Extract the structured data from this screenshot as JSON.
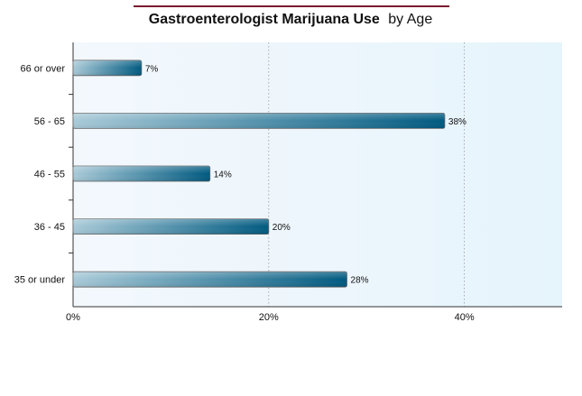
{
  "chart_data": {
    "type": "bar",
    "orientation": "horizontal",
    "title_bold": "Gastroenterologist Marijuana Use",
    "title_normal": "by Age",
    "categories": [
      "66 or over",
      "56 - 65",
      "46 - 55",
      "36 - 45",
      "35 or under"
    ],
    "values": [
      7,
      38,
      14,
      20,
      28
    ],
    "value_labels": [
      "7%",
      "38%",
      "14%",
      "20%",
      "28%"
    ],
    "xlim": [
      0,
      50
    ],
    "xticks": [
      0,
      20,
      40
    ],
    "xtick_labels": [
      "0%",
      "20%",
      "40%"
    ],
    "grid": "vertical-dotted",
    "colors": {
      "title_rule": "#7a1a2e",
      "bar_light": "#a9cad8",
      "bar_dark": "#005a80",
      "bar_border": "#666666",
      "plot_bg_left": "#f3f8fd",
      "plot_bg_right": "#e6f4fb",
      "grid": "#999999",
      "axis": "#333333"
    }
  }
}
